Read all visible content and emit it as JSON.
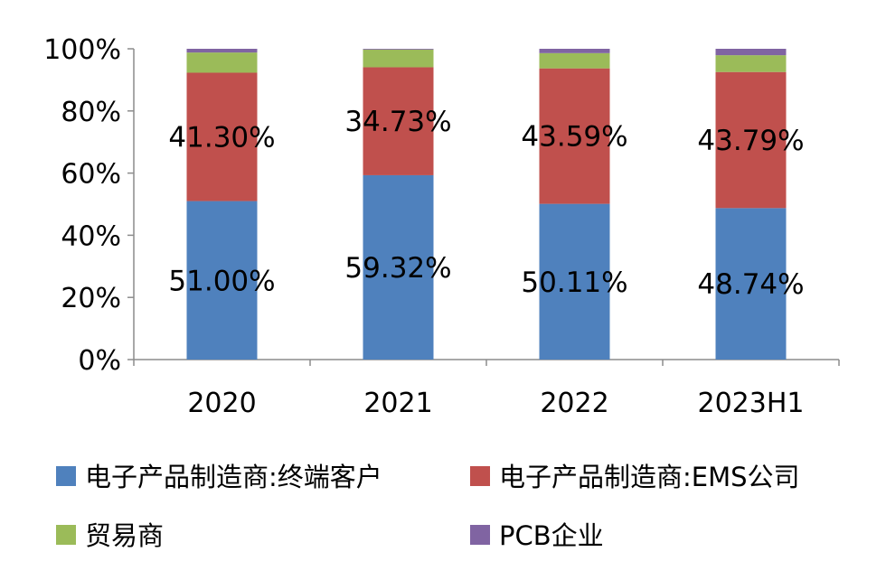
{
  "chart_data": {
    "type": "bar",
    "stacked": true,
    "title": "",
    "xlabel": "",
    "ylabel": "",
    "ylim": [
      0,
      100
    ],
    "yticks": [
      "0%",
      "20%",
      "40%",
      "60%",
      "80%",
      "100%"
    ],
    "categories": [
      "2020",
      "2021",
      "2022",
      "2023H1"
    ],
    "series": [
      {
        "name": "电子产品制造商:终端客户",
        "color": "#4F81BD",
        "values": [
          51.0,
          59.32,
          50.11,
          48.74
        ],
        "labels": [
          "51.00%",
          "59.32%",
          "50.11%",
          "48.74%"
        ]
      },
      {
        "name": "电子产品制造商:EMS公司",
        "color": "#C0504D",
        "values": [
          41.3,
          34.73,
          43.59,
          43.79
        ],
        "labels": [
          "41.30%",
          "34.73%",
          "43.59%",
          "43.79%"
        ]
      },
      {
        "name": "贸易商",
        "color": "#9BBB59",
        "values": [
          6.5,
          5.7,
          4.9,
          5.4
        ]
      },
      {
        "name": "PCB企业",
        "color": "#8064A2",
        "values": [
          1.2,
          0.25,
          1.4,
          2.07
        ]
      }
    ],
    "legend": "bottom"
  }
}
